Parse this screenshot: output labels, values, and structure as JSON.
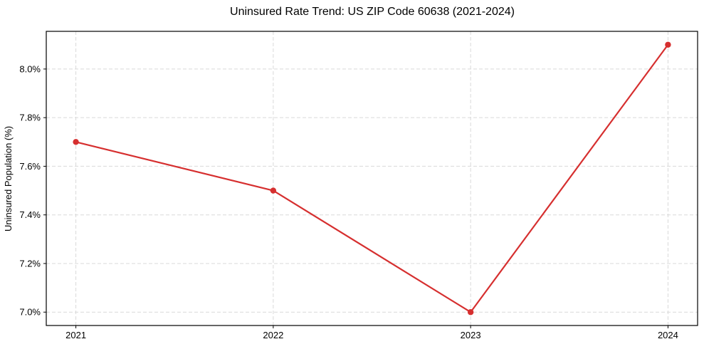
{
  "chart_data": {
    "type": "line",
    "title": "Uninsured Rate Trend: US ZIP Code 60638 (2021-2024)",
    "xlabel": "",
    "ylabel": "Uninsured Population (%)",
    "x": [
      2021,
      2022,
      2023,
      2024
    ],
    "values": [
      7.7,
      7.5,
      7.0,
      8.1
    ],
    "xtick_labels": [
      "2021",
      "2022",
      "2023",
      "2024"
    ],
    "yticks": [
      7.0,
      7.2,
      7.4,
      7.6,
      7.8,
      8.0
    ],
    "ytick_labels": [
      "7.0%",
      "7.2%",
      "7.4%",
      "7.6%",
      "7.8%",
      "8.0%"
    ],
    "xlim": [
      2020.85,
      2024.15
    ],
    "ylim": [
      6.945,
      8.155
    ],
    "grid": true,
    "legend": "none",
    "marker": "circle",
    "line_color": "#d62f2f",
    "grid_color": "#d9d9d9",
    "background": "#ffffff"
  }
}
